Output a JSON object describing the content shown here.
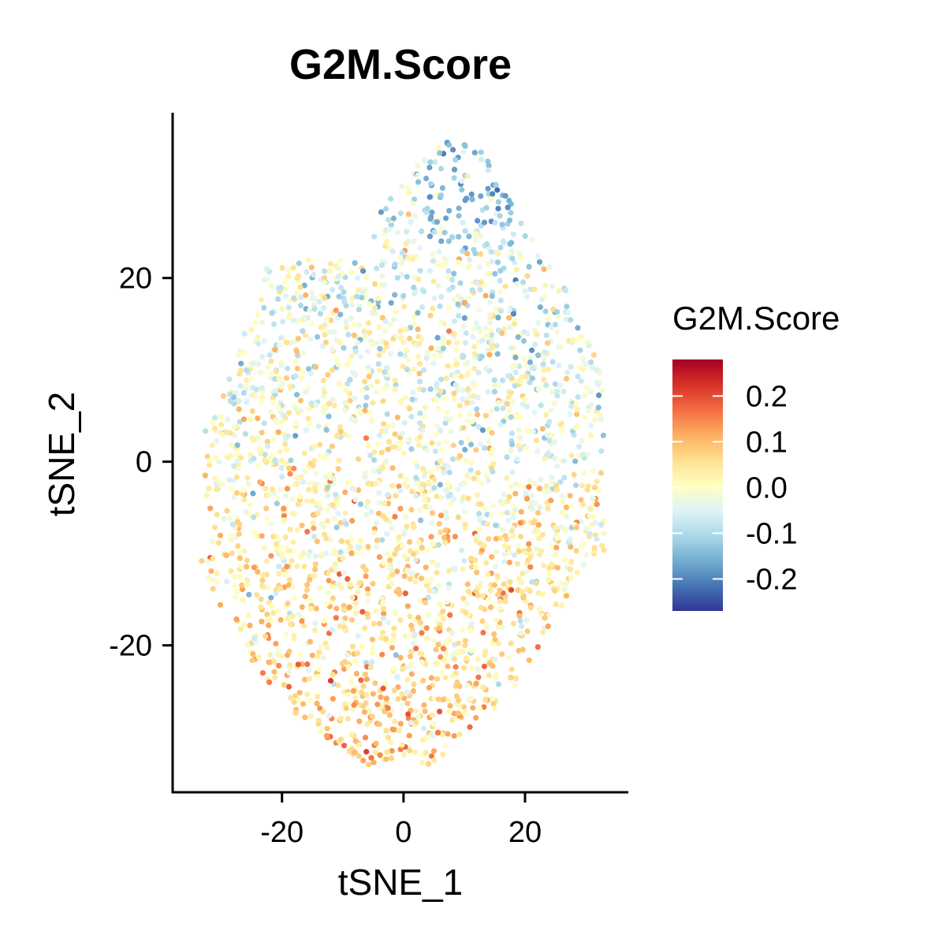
{
  "chart_data": {
    "type": "scatter",
    "title": "G2M.Score",
    "xlabel": "tSNE_1",
    "ylabel": "tSNE_2",
    "xlim": [
      -38,
      37
    ],
    "ylim": [
      -36,
      38
    ],
    "xticks": [
      -20,
      0,
      20
    ],
    "yticks": [
      -20,
      0,
      20
    ],
    "x_tick_labels": [
      "-20",
      "0",
      "20"
    ],
    "y_tick_labels": [
      "-20",
      "0",
      "20"
    ],
    "grid": false,
    "legend": {
      "title": "G2M.Score",
      "placement": "right",
      "type": "colorbar",
      "range": [
        -0.27,
        0.28
      ],
      "ticks": [
        0.2,
        0.1,
        0.0,
        -0.1,
        -0.2
      ],
      "tick_labels": [
        "0.2",
        "0.1",
        "0.0",
        "-0.1",
        "-0.2"
      ],
      "colors_low_to_high": [
        "#313695",
        "#4575b4",
        "#74add1",
        "#abd9e9",
        "#e0f3f8",
        "#ffffbf",
        "#fee090",
        "#fdae61",
        "#f46d43",
        "#d73027",
        "#a50026"
      ]
    },
    "points_summary": {
      "count_approx": 2700,
      "x_range": [
        -34,
        33
      ],
      "y_range": [
        -33,
        35
      ],
      "pattern": "higher (orange/red) scores concentrated in the lower half; lower (blue) scores in the upper right, especially near the top tip"
    }
  }
}
